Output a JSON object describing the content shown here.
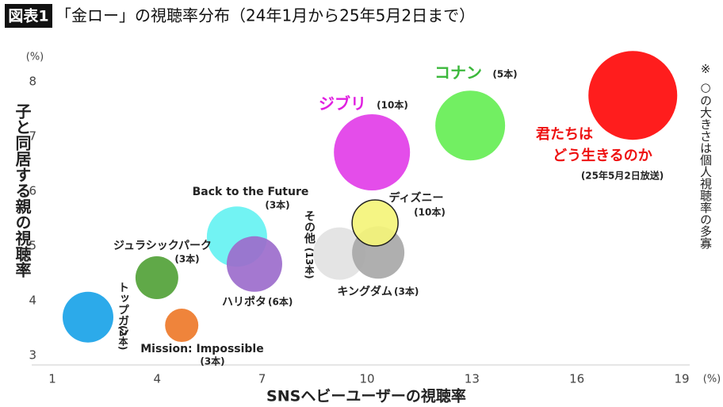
{
  "chart_data": {
    "type": "bubble",
    "badge": "図表1",
    "title": "「金ロー」の視聴率分布（24年1月から25年5月2日まで）",
    "x_label": "SNSヘビーユーザーの視聴率",
    "y_label": "子と同居する親の視聴率",
    "x_unit": "(%)",
    "y_unit": "(%)",
    "size_note": "※ ○の大きさは個人視聴率の多寡",
    "xlim": [
      1,
      19
    ],
    "xticks": [
      1,
      4,
      7,
      10,
      13,
      16,
      19
    ],
    "ylim": [
      3,
      8
    ],
    "yticks": [
      3,
      4,
      5,
      6,
      7,
      8
    ],
    "series": [
      {
        "label": [
          "トップガン"
        ],
        "note": "(2本)",
        "color": "#1aa3e8",
        "label_color": "#222",
        "x": 2.02,
        "y": 3.7,
        "size": 32
      },
      {
        "label": [
          "ジュラシックパーク"
        ],
        "note": "(3本)",
        "color": "#52a238",
        "label_color": "#222",
        "x": 3.99,
        "y": 4.42,
        "size": 27
      },
      {
        "label": [
          "Mission: Impossible"
        ],
        "note": "(3本)",
        "color": "#ee7a2a",
        "label_color": "#222",
        "x": 4.7,
        "y": 3.55,
        "size": 21
      },
      {
        "label": [
          "Back to the Future"
        ],
        "note": "(3本)",
        "color": "#66f2f2",
        "label_color": "#222",
        "x": 6.28,
        "y": 5.17,
        "size": 38
      },
      {
        "label": [
          "ハリポタ"
        ],
        "note": "(6本)",
        "color": "#9c6ccc",
        "label_color": "#222",
        "x": 6.78,
        "y": 4.67,
        "size": 35
      },
      {
        "label": [
          "その他"
        ],
        "note": "(13本)",
        "color": "#e2e2e2",
        "label_color": "#222",
        "x": 9.21,
        "y": 4.86,
        "size": 33
      },
      {
        "label": [
          "キングダム"
        ],
        "note": "(3本)",
        "color": "#a8a8a8",
        "label_color": "#222",
        "x": 10.32,
        "y": 4.88,
        "size": 33
      },
      {
        "label": [
          "ディズニー"
        ],
        "note": "(10本)",
        "color": "#f5f57a",
        "label_color": "#222",
        "x": 10.23,
        "y": 5.42,
        "size": 29
      },
      {
        "label": [
          "ジブリ"
        ],
        "note": "(10本)",
        "color": "#e23ee8",
        "label_color": "#e020e0",
        "x": 10.14,
        "y": 6.71,
        "size": 48
      },
      {
        "label": [
          "コナン"
        ],
        "note": "(5本)",
        "color": "#66ee55",
        "label_color": "#3cb83c",
        "x": 12.95,
        "y": 7.2,
        "size": 44
      },
      {
        "label": [
          "君たちは",
          "どう生きるのか"
        ],
        "note": "(25年5月2日放送)",
        "color": "#ff0a0a",
        "label_color": "#ee1111",
        "x": 17.6,
        "y": 7.75,
        "size": 56
      }
    ]
  }
}
